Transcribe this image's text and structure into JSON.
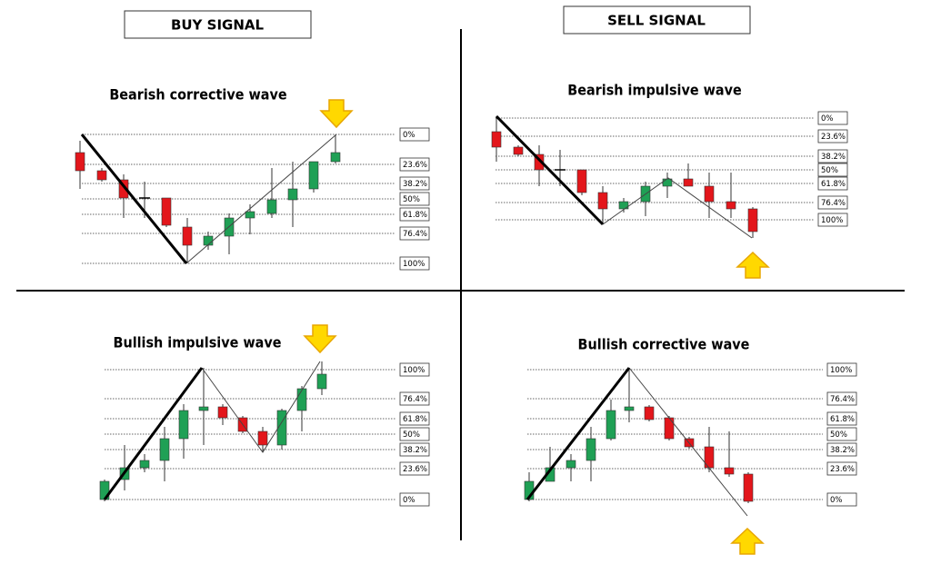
{
  "header": {
    "buy": "BUY SIGNAL",
    "sell": "SELL SIGNAL"
  },
  "panels": [
    {
      "title": "Bearish corrective wave",
      "levels": [
        "0%",
        "23.6%",
        "38.2%",
        "50%",
        "61.8%",
        "76.4%",
        "100%"
      ]
    },
    {
      "title": "Bearish impulsive wave",
      "levels": [
        "0%",
        "23.6%",
        "38.2%",
        "50%",
        "61.8%",
        "76.4%",
        "100%"
      ]
    },
    {
      "title": "Bullish impulsive wave",
      "levels": [
        "100%",
        "76.4%",
        "61.8%",
        "50%",
        "38.2%",
        "23.6%",
        "0%"
      ]
    },
    {
      "title": "Bullish corrective wave",
      "levels": [
        "100%",
        "76.4%",
        "61.8%",
        "50%",
        "38.2%",
        "23.6%",
        "0%"
      ]
    }
  ]
}
